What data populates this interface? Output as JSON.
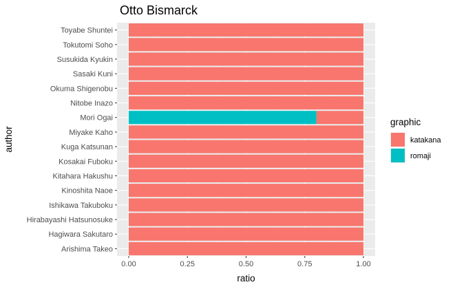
{
  "chart_data": {
    "type": "bar",
    "orientation": "horizontal",
    "stacked": true,
    "title": "Otto Bismarck",
    "xlabel": "ratio",
    "ylabel": "author",
    "xlim": [
      0,
      1
    ],
    "x_ticks": [
      "0.00",
      "0.25",
      "0.50",
      "0.75",
      "1.00"
    ],
    "x_tick_values": [
      0,
      0.25,
      0.5,
      0.75,
      1.0
    ],
    "categories": [
      "Toyabe Shuntei",
      "Tokutomi Soho",
      "Susukida Kyukin",
      "Sasaki Kuni",
      "Okuma Shigenobu",
      "Nitobe Inazo",
      "Mori Ogai",
      "Miyake Kaho",
      "Kuga Katsunan",
      "Kosakai Fuboku",
      "Kitahara Hakushu",
      "Kinoshita Naoe",
      "Ishikawa Takuboku",
      "Hirabayashi Hatsunosuke",
      "Hagiwara Sakutaro",
      "Arishima Takeo"
    ],
    "series": [
      {
        "name": "romaji",
        "color": "#00BFC4",
        "values": [
          0,
          0,
          0,
          0,
          0,
          0,
          0.8,
          0,
          0,
          0,
          0,
          0,
          0,
          0,
          0,
          0
        ]
      },
      {
        "name": "katakana",
        "color": "#F8766D",
        "values": [
          1,
          1,
          1,
          1,
          1,
          1,
          0.2,
          1,
          1,
          1,
          1,
          1,
          1,
          1,
          1,
          1
        ]
      }
    ],
    "legend": {
      "title": "graphic",
      "position": "right",
      "entries": [
        {
          "label": "katakana",
          "color": "#F8766D"
        },
        {
          "label": "romaji",
          "color": "#00BFC4"
        }
      ]
    },
    "grid": true,
    "panel_background": "#EBEBEB",
    "grid_color": "#FFFFFF"
  }
}
